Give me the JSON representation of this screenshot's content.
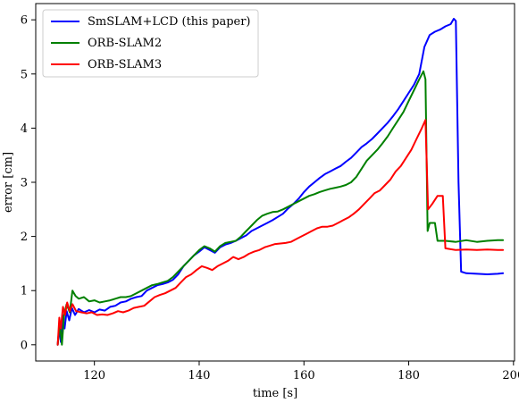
{
  "chart_data": {
    "type": "line",
    "title": "",
    "xlabel": "time [s]",
    "ylabel": "error [cm]",
    "xlim": [
      108.8,
      200.2
    ],
    "ylim": [
      -0.3,
      6.3
    ],
    "xticks": [
      120,
      140,
      160,
      180,
      200
    ],
    "yticks": [
      0,
      1,
      2,
      3,
      4,
      5,
      6
    ],
    "grid": false,
    "legend_position": "top-left",
    "series": [
      {
        "name": "SmSLAM+LCD (this paper)",
        "color": "#0000ff",
        "points": [
          [
            113.0,
            0.0
          ],
          [
            113.3,
            0.35
          ],
          [
            113.6,
            0.05
          ],
          [
            113.9,
            0.55
          ],
          [
            114.3,
            0.3
          ],
          [
            114.7,
            0.62
          ],
          [
            115.2,
            0.45
          ],
          [
            115.7,
            0.68
          ],
          [
            116.3,
            0.55
          ],
          [
            117.0,
            0.66
          ],
          [
            118.0,
            0.6
          ],
          [
            119.0,
            0.64
          ],
          [
            120.0,
            0.6
          ],
          [
            121.0,
            0.65
          ],
          [
            122.0,
            0.63
          ],
          [
            123.0,
            0.7
          ],
          [
            124.0,
            0.72
          ],
          [
            125.0,
            0.78
          ],
          [
            126.0,
            0.8
          ],
          [
            127.0,
            0.85
          ],
          [
            128.0,
            0.88
          ],
          [
            129.0,
            0.9
          ],
          [
            130.0,
            1.0
          ],
          [
            131.0,
            1.05
          ],
          [
            132.0,
            1.1
          ],
          [
            133.0,
            1.12
          ],
          [
            134.0,
            1.15
          ],
          [
            135.0,
            1.2
          ],
          [
            136.0,
            1.3
          ],
          [
            137.0,
            1.45
          ],
          [
            138.0,
            1.55
          ],
          [
            139.0,
            1.65
          ],
          [
            140.0,
            1.72
          ],
          [
            141.0,
            1.8
          ],
          [
            142.0,
            1.75
          ],
          [
            143.0,
            1.7
          ],
          [
            144.0,
            1.8
          ],
          [
            145.0,
            1.85
          ],
          [
            146.0,
            1.88
          ],
          [
            147.0,
            1.92
          ],
          [
            148.0,
            1.97
          ],
          [
            149.0,
            2.02
          ],
          [
            150.0,
            2.1
          ],
          [
            151.0,
            2.15
          ],
          [
            152.0,
            2.2
          ],
          [
            153.0,
            2.25
          ],
          [
            154.0,
            2.3
          ],
          [
            155.0,
            2.36
          ],
          [
            156.0,
            2.42
          ],
          [
            157.0,
            2.52
          ],
          [
            158.0,
            2.6
          ],
          [
            159.0,
            2.7
          ],
          [
            160.0,
            2.82
          ],
          [
            161.0,
            2.92
          ],
          [
            162.0,
            3.0
          ],
          [
            163.0,
            3.08
          ],
          [
            164.0,
            3.15
          ],
          [
            165.0,
            3.2
          ],
          [
            166.0,
            3.25
          ],
          [
            167.0,
            3.3
          ],
          [
            168.0,
            3.38
          ],
          [
            169.0,
            3.45
          ],
          [
            170.0,
            3.55
          ],
          [
            171.0,
            3.65
          ],
          [
            172.0,
            3.72
          ],
          [
            173.0,
            3.8
          ],
          [
            174.0,
            3.9
          ],
          [
            175.0,
            4.0
          ],
          [
            176.0,
            4.1
          ],
          [
            177.0,
            4.22
          ],
          [
            178.0,
            4.35
          ],
          [
            179.0,
            4.5
          ],
          [
            180.0,
            4.65
          ],
          [
            181.0,
            4.8
          ],
          [
            182.0,
            5.0
          ],
          [
            182.6,
            5.3
          ],
          [
            183.0,
            5.5
          ],
          [
            184.0,
            5.72
          ],
          [
            185.0,
            5.78
          ],
          [
            186.0,
            5.82
          ],
          [
            187.0,
            5.88
          ],
          [
            188.0,
            5.92
          ],
          [
            188.6,
            6.02
          ],
          [
            189.0,
            5.98
          ],
          [
            189.5,
            3.0
          ],
          [
            190.0,
            1.35
          ],
          [
            191.0,
            1.32
          ],
          [
            193.0,
            1.31
          ],
          [
            195.0,
            1.3
          ],
          [
            197.0,
            1.31
          ],
          [
            198.0,
            1.32
          ]
        ]
      },
      {
        "name": "ORB-SLAM2",
        "color": "#008000",
        "points": [
          [
            113.0,
            0.0
          ],
          [
            113.4,
            0.4
          ],
          [
            113.8,
            0.0
          ],
          [
            114.2,
            0.55
          ],
          [
            114.7,
            0.75
          ],
          [
            115.3,
            0.6
          ],
          [
            115.8,
            1.0
          ],
          [
            116.4,
            0.9
          ],
          [
            117.0,
            0.85
          ],
          [
            118.0,
            0.88
          ],
          [
            119.0,
            0.8
          ],
          [
            120.0,
            0.82
          ],
          [
            121.0,
            0.78
          ],
          [
            122.0,
            0.8
          ],
          [
            123.0,
            0.82
          ],
          [
            124.0,
            0.85
          ],
          [
            125.0,
            0.88
          ],
          [
            126.0,
            0.88
          ],
          [
            127.0,
            0.9
          ],
          [
            128.0,
            0.95
          ],
          [
            129.0,
            1.0
          ],
          [
            130.0,
            1.05
          ],
          [
            131.0,
            1.1
          ],
          [
            132.0,
            1.12
          ],
          [
            133.0,
            1.15
          ],
          [
            134.0,
            1.18
          ],
          [
            135.0,
            1.25
          ],
          [
            136.0,
            1.35
          ],
          [
            137.0,
            1.45
          ],
          [
            138.0,
            1.55
          ],
          [
            139.0,
            1.65
          ],
          [
            140.0,
            1.75
          ],
          [
            141.0,
            1.82
          ],
          [
            142.0,
            1.78
          ],
          [
            143.0,
            1.72
          ],
          [
            144.0,
            1.82
          ],
          [
            145.0,
            1.88
          ],
          [
            146.0,
            1.9
          ],
          [
            147.0,
            1.92
          ],
          [
            148.0,
            2.0
          ],
          [
            149.0,
            2.1
          ],
          [
            150.0,
            2.2
          ],
          [
            151.0,
            2.3
          ],
          [
            152.0,
            2.38
          ],
          [
            153.0,
            2.42
          ],
          [
            154.0,
            2.45
          ],
          [
            155.0,
            2.46
          ],
          [
            156.0,
            2.5
          ],
          [
            157.0,
            2.55
          ],
          [
            158.0,
            2.6
          ],
          [
            159.0,
            2.65
          ],
          [
            160.0,
            2.7
          ],
          [
            161.0,
            2.75
          ],
          [
            162.0,
            2.78
          ],
          [
            163.0,
            2.82
          ],
          [
            164.0,
            2.85
          ],
          [
            165.0,
            2.88
          ],
          [
            166.0,
            2.9
          ],
          [
            167.0,
            2.92
          ],
          [
            168.0,
            2.95
          ],
          [
            169.0,
            3.0
          ],
          [
            170.0,
            3.1
          ],
          [
            171.0,
            3.25
          ],
          [
            172.0,
            3.4
          ],
          [
            173.0,
            3.5
          ],
          [
            174.0,
            3.6
          ],
          [
            175.0,
            3.72
          ],
          [
            176.0,
            3.85
          ],
          [
            177.0,
            4.0
          ],
          [
            178.0,
            4.15
          ],
          [
            179.0,
            4.3
          ],
          [
            180.0,
            4.5
          ],
          [
            181.0,
            4.7
          ],
          [
            182.0,
            4.9
          ],
          [
            182.8,
            5.05
          ],
          [
            183.2,
            4.9
          ],
          [
            183.6,
            2.1
          ],
          [
            184.0,
            2.25
          ],
          [
            185.0,
            2.25
          ],
          [
            185.5,
            1.92
          ],
          [
            187.0,
            1.92
          ],
          [
            189.0,
            1.9
          ],
          [
            191.0,
            1.93
          ],
          [
            193.0,
            1.9
          ],
          [
            195.0,
            1.92
          ],
          [
            197.0,
            1.93
          ],
          [
            198.0,
            1.93
          ]
        ]
      },
      {
        "name": "ORB-SLAM3",
        "color": "#ff0000",
        "points": [
          [
            113.0,
            0.0
          ],
          [
            113.3,
            0.5
          ],
          [
            113.6,
            0.3
          ],
          [
            114.0,
            0.7
          ],
          [
            114.4,
            0.55
          ],
          [
            114.8,
            0.78
          ],
          [
            115.3,
            0.62
          ],
          [
            115.8,
            0.75
          ],
          [
            116.5,
            0.62
          ],
          [
            117.5,
            0.6
          ],
          [
            118.5,
            0.58
          ],
          [
            119.5,
            0.6
          ],
          [
            120.5,
            0.55
          ],
          [
            121.5,
            0.56
          ],
          [
            122.5,
            0.55
          ],
          [
            123.5,
            0.58
          ],
          [
            124.5,
            0.62
          ],
          [
            125.5,
            0.6
          ],
          [
            126.5,
            0.63
          ],
          [
            127.5,
            0.68
          ],
          [
            128.5,
            0.7
          ],
          [
            129.5,
            0.72
          ],
          [
            130.5,
            0.8
          ],
          [
            131.5,
            0.88
          ],
          [
            132.5,
            0.92
          ],
          [
            133.5,
            0.95
          ],
          [
            134.5,
            1.0
          ],
          [
            135.5,
            1.05
          ],
          [
            136.5,
            1.15
          ],
          [
            137.5,
            1.25
          ],
          [
            138.5,
            1.3
          ],
          [
            139.5,
            1.38
          ],
          [
            140.5,
            1.45
          ],
          [
            141.5,
            1.42
          ],
          [
            142.5,
            1.38
          ],
          [
            143.5,
            1.45
          ],
          [
            144.5,
            1.5
          ],
          [
            145.5,
            1.55
          ],
          [
            146.5,
            1.62
          ],
          [
            147.5,
            1.58
          ],
          [
            148.5,
            1.62
          ],
          [
            149.5,
            1.68
          ],
          [
            150.5,
            1.72
          ],
          [
            151.5,
            1.75
          ],
          [
            152.5,
            1.8
          ],
          [
            153.5,
            1.83
          ],
          [
            154.5,
            1.86
          ],
          [
            155.5,
            1.87
          ],
          [
            156.5,
            1.88
          ],
          [
            157.5,
            1.9
          ],
          [
            158.5,
            1.95
          ],
          [
            159.5,
            2.0
          ],
          [
            160.5,
            2.05
          ],
          [
            161.5,
            2.1
          ],
          [
            162.5,
            2.15
          ],
          [
            163.5,
            2.18
          ],
          [
            164.5,
            2.18
          ],
          [
            165.5,
            2.2
          ],
          [
            166.5,
            2.25
          ],
          [
            167.5,
            2.3
          ],
          [
            168.5,
            2.35
          ],
          [
            169.5,
            2.42
          ],
          [
            170.5,
            2.5
          ],
          [
            171.5,
            2.6
          ],
          [
            172.5,
            2.7
          ],
          [
            173.5,
            2.8
          ],
          [
            174.5,
            2.85
          ],
          [
            175.5,
            2.95
          ],
          [
            176.5,
            3.05
          ],
          [
            177.5,
            3.2
          ],
          [
            178.5,
            3.3
          ],
          [
            179.5,
            3.45
          ],
          [
            180.5,
            3.6
          ],
          [
            181.5,
            3.8
          ],
          [
            182.5,
            4.0
          ],
          [
            183.2,
            4.15
          ],
          [
            183.7,
            2.5
          ],
          [
            184.5,
            2.6
          ],
          [
            185.5,
            2.75
          ],
          [
            186.5,
            2.75
          ],
          [
            187.0,
            1.78
          ],
          [
            189.0,
            1.75
          ],
          [
            191.0,
            1.76
          ],
          [
            193.0,
            1.75
          ],
          [
            195.0,
            1.76
          ],
          [
            197.0,
            1.75
          ],
          [
            198.0,
            1.75
          ]
        ]
      }
    ]
  }
}
